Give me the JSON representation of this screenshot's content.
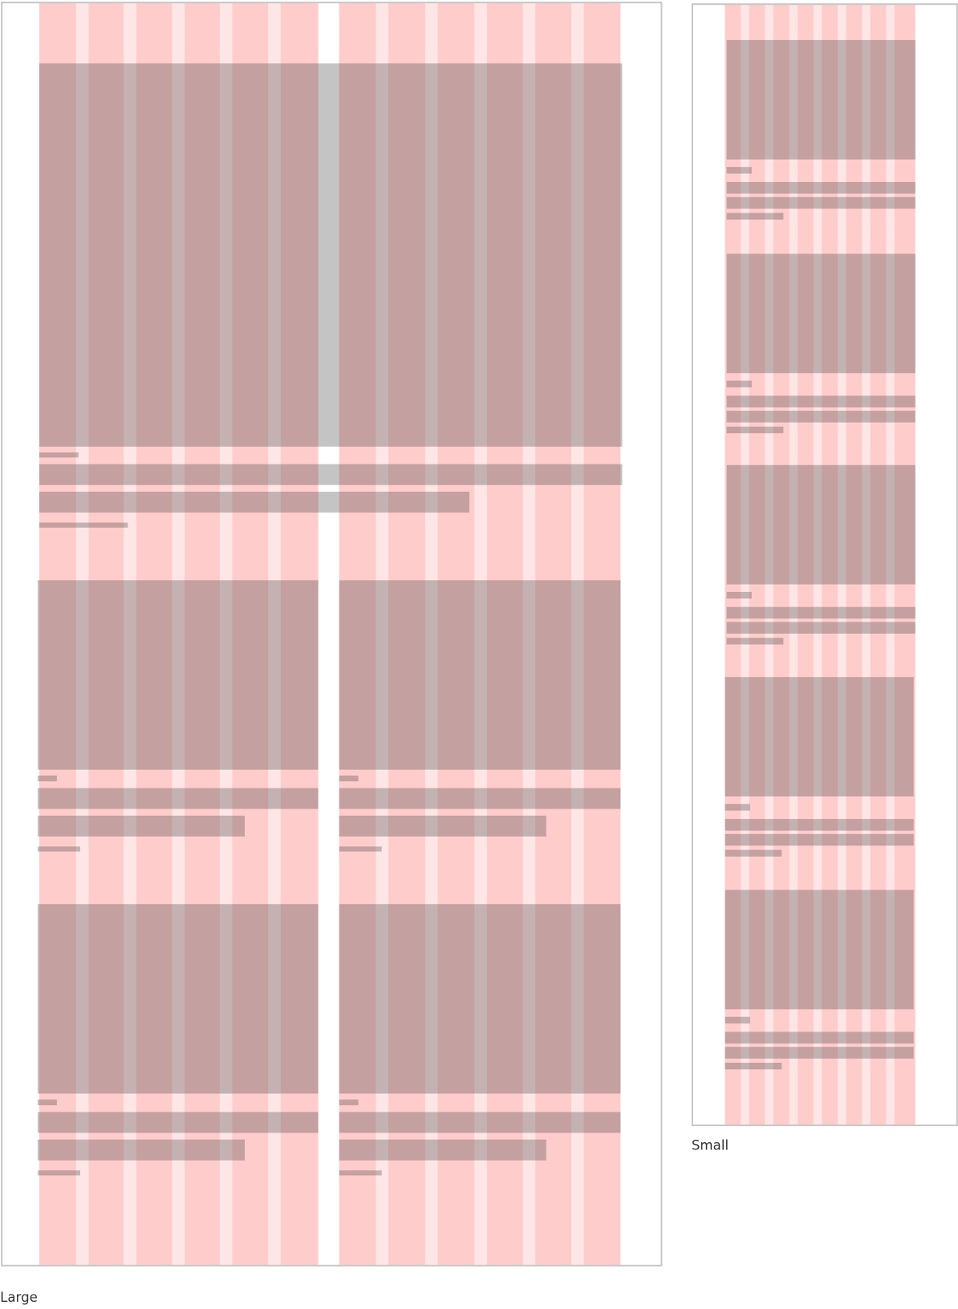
{
  "frames": [
    {
      "label": "Large"
    },
    {
      "label": "Small"
    }
  ]
}
